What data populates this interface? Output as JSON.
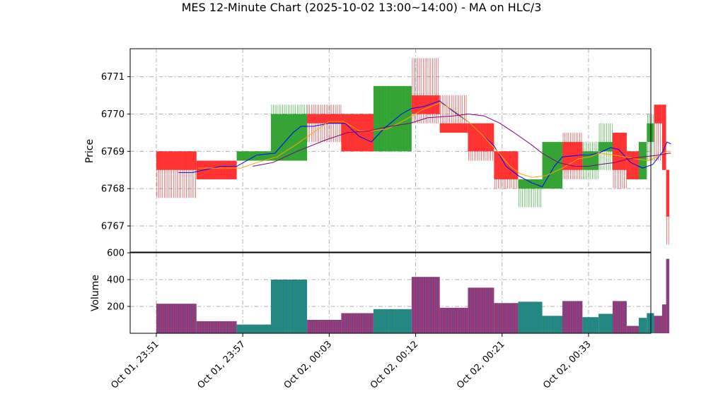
{
  "chart_data": {
    "type": "ohlc-volume",
    "title": "MES 12-Minute Chart (2025-10-02 13:00~14:00) - MA on HLC/3",
    "price_panel": {
      "ylabel": "Price",
      "ylim": [
        6766.3,
        6771.75
      ],
      "yticks": [
        6767,
        6768,
        6769,
        6770,
        6771
      ],
      "grid": true
    },
    "volume_panel": {
      "ylabel": "Volume",
      "ylim": [
        0,
        600
      ],
      "yticks": [
        200,
        400,
        600
      ],
      "grid": true
    },
    "x_axis": {
      "xlim": [
        -0.65,
        12.3
      ],
      "tick_positions": [
        0,
        2.15,
        4.3,
        6.45,
        8.6,
        10.75,
        12.9
      ],
      "tick_labels": [
        "Oct 01, 23:51",
        "Oct 01, 23:57",
        "Oct 02, 00:03",
        "Oct 02, 00:12",
        "Oct 02, 00:21",
        "Oct 02, 00:33",
        ""
      ]
    },
    "candles": [
      {
        "x0": 0.0,
        "x1": 1.0,
        "open": 6769.0,
        "high": 6769.0,
        "low": 6767.75,
        "close": 6768.5,
        "volume": 220
      },
      {
        "x0": 1.0,
        "x1": 2.0,
        "open": 6768.75,
        "high": 6768.75,
        "low": 6768.25,
        "close": 6768.25,
        "volume": 90
      },
      {
        "x0": 2.0,
        "x1": 2.85,
        "open": 6768.75,
        "high": 6769.0,
        "low": 6768.75,
        "close": 6769.0,
        "volume": 65
      },
      {
        "x0": 2.85,
        "x1": 3.75,
        "open": 6768.75,
        "high": 6770.25,
        "low": 6768.75,
        "close": 6770.0,
        "volume": 400
      },
      {
        "x0": 3.75,
        "x1": 4.6,
        "open": 6770.0,
        "high": 6770.25,
        "low": 6769.25,
        "close": 6769.75,
        "volume": 100
      },
      {
        "x0": 4.6,
        "x1": 5.4,
        "open": 6770.0,
        "high": 6770.0,
        "low": 6769.0,
        "close": 6769.0,
        "volume": 150
      },
      {
        "x0": 5.4,
        "x1": 6.35,
        "open": 6769.0,
        "high": 6770.75,
        "low": 6769.0,
        "close": 6770.75,
        "volume": 180
      },
      {
        "x0": 6.35,
        "x1": 7.05,
        "open": 6770.5,
        "high": 6771.5,
        "low": 6769.75,
        "close": 6770.0,
        "volume": 420
      },
      {
        "x0": 7.05,
        "x1": 7.75,
        "open": 6769.75,
        "high": 6770.5,
        "low": 6769.5,
        "close": 6769.5,
        "volume": 190
      },
      {
        "x0": 7.75,
        "x1": 8.4,
        "open": 6769.75,
        "high": 6769.75,
        "low": 6768.75,
        "close": 6769.0,
        "volume": 340
      },
      {
        "x0": 8.4,
        "x1": 9.0,
        "open": 6769.0,
        "high": 6769.0,
        "low": 6768.0,
        "close": 6768.25,
        "volume": 225
      },
      {
        "x0": 9.0,
        "x1": 9.6,
        "open": 6768.0,
        "high": 6768.25,
        "low": 6767.5,
        "close": 6768.25,
        "volume": 235
      },
      {
        "x0": 9.6,
        "x1": 10.1,
        "open": 6768.0,
        "high": 6769.25,
        "low": 6768.0,
        "close": 6769.25,
        "volume": 130
      },
      {
        "x0": 10.1,
        "x1": 10.6,
        "open": 6769.25,
        "high": 6769.5,
        "low": 6768.25,
        "close": 6768.5,
        "volume": 240
      },
      {
        "x0": 10.6,
        "x1": 11.0,
        "open": 6768.5,
        "high": 6769.25,
        "low": 6768.25,
        "close": 6769.0,
        "volume": 120
      },
      {
        "x0": 11.0,
        "x1": 11.35,
        "open": 6769.0,
        "high": 6769.75,
        "low": 6768.5,
        "close": 6769.25,
        "volume": 145
      },
      {
        "x0": 11.35,
        "x1": 11.7,
        "open": 6769.5,
        "high": 6769.5,
        "low": 6768.0,
        "close": 6768.5,
        "volume": 240
      },
      {
        "x0": 11.7,
        "x1": 12.0,
        "open": 6769.0,
        "high": 6769.0,
        "low": 6768.25,
        "close": 6768.25,
        "volume": 55
      },
      {
        "x0": 12.0,
        "x1": 12.2,
        "open": 6768.25,
        "high": 6769.25,
        "low": 6768.25,
        "close": 6769.25,
        "volume": 115
      },
      {
        "x0": 12.2,
        "x1": 12.38,
        "open": 6769.25,
        "high": 6770.0,
        "low": 6768.75,
        "close": 6769.75,
        "volume": 150
      },
      {
        "x0": 12.38,
        "x1": 12.58,
        "open": 6770.25,
        "high": 6770.25,
        "low": 6768.75,
        "close": 6769.75,
        "volume": 130
      },
      {
        "x0": 12.58,
        "x1": 12.68,
        "open": 6770.25,
        "high": 6770.25,
        "low": 6768.5,
        "close": 6768.5,
        "volume": 215
      },
      {
        "x0": 12.68,
        "x1": 12.76,
        "open": 6768.5,
        "high": 6768.5,
        "low": 6766.5,
        "close": 6767.25,
        "volume": 555
      }
    ],
    "moving_averages": [
      {
        "color": "#0000ff",
        "points": [
          [
            0.55,
            6768.43
          ],
          [
            0.9,
            6768.43
          ],
          [
            1.6,
            6768.6
          ],
          [
            2.0,
            6768.6
          ],
          [
            2.5,
            6768.9
          ],
          [
            2.95,
            6768.95
          ],
          [
            3.4,
            6769.5
          ],
          [
            3.6,
            6769.67
          ],
          [
            3.9,
            6769.67
          ],
          [
            4.3,
            6769.75
          ],
          [
            4.7,
            6769.75
          ],
          [
            5.05,
            6769.4
          ],
          [
            5.35,
            6769.25
          ],
          [
            5.65,
            6769.6
          ],
          [
            6.1,
            6770.0
          ],
          [
            6.35,
            6770.15
          ],
          [
            6.65,
            6770.2
          ],
          [
            7.05,
            6770.35
          ],
          [
            7.35,
            6770.1
          ],
          [
            7.75,
            6769.8
          ],
          [
            8.05,
            6769.5
          ],
          [
            8.4,
            6769.15
          ],
          [
            8.7,
            6768.6
          ],
          [
            9.0,
            6768.35
          ],
          [
            9.35,
            6768.15
          ],
          [
            9.6,
            6768.05
          ],
          [
            9.9,
            6768.6
          ],
          [
            10.1,
            6768.85
          ],
          [
            10.55,
            6768.9
          ],
          [
            10.75,
            6768.9
          ],
          [
            11.0,
            6768.95
          ],
          [
            11.3,
            6769.1
          ],
          [
            11.5,
            6769.05
          ],
          [
            11.8,
            6768.7
          ],
          [
            12.1,
            6768.55
          ],
          [
            12.35,
            6768.65
          ],
          [
            12.6,
            6769.0
          ],
          [
            12.7,
            6769.25
          ],
          [
            12.8,
            6769.2
          ]
        ]
      },
      {
        "color": "#ffa500",
        "points": [
          [
            1.05,
            6768.55
          ],
          [
            1.6,
            6768.55
          ],
          [
            2.1,
            6768.55
          ],
          [
            2.5,
            6768.7
          ],
          [
            3.0,
            6768.85
          ],
          [
            3.5,
            6769.2
          ],
          [
            3.9,
            6769.5
          ],
          [
            4.3,
            6769.8
          ],
          [
            4.65,
            6769.8
          ],
          [
            5.05,
            6769.55
          ],
          [
            5.35,
            6769.55
          ],
          [
            5.75,
            6769.6
          ],
          [
            6.2,
            6769.85
          ],
          [
            6.6,
            6770.1
          ],
          [
            7.05,
            6770.3
          ],
          [
            7.4,
            6770.1
          ],
          [
            7.75,
            6769.8
          ],
          [
            8.1,
            6769.45
          ],
          [
            8.4,
            6769.1
          ],
          [
            8.8,
            6768.6
          ],
          [
            9.05,
            6768.4
          ],
          [
            9.35,
            6768.3
          ],
          [
            9.7,
            6768.35
          ],
          [
            10.1,
            6768.55
          ],
          [
            10.5,
            6768.8
          ],
          [
            10.8,
            6768.85
          ],
          [
            11.0,
            6768.95
          ],
          [
            11.4,
            6768.9
          ],
          [
            11.9,
            6768.8
          ],
          [
            12.25,
            6768.75
          ],
          [
            12.55,
            6768.9
          ],
          [
            12.7,
            6769.0
          ],
          [
            12.8,
            6769.0
          ]
        ]
      },
      {
        "color": "#800080",
        "points": [
          [
            2.4,
            6768.6
          ],
          [
            2.9,
            6768.7
          ],
          [
            3.5,
            6769.0
          ],
          [
            4.2,
            6769.3
          ],
          [
            4.75,
            6769.5
          ],
          [
            5.3,
            6769.55
          ],
          [
            5.7,
            6769.65
          ],
          [
            6.3,
            6769.75
          ],
          [
            6.75,
            6769.9
          ],
          [
            7.4,
            6769.95
          ],
          [
            7.75,
            6770.0
          ],
          [
            8.15,
            6769.95
          ],
          [
            8.55,
            6769.75
          ],
          [
            8.9,
            6769.5
          ],
          [
            9.3,
            6769.2
          ],
          [
            9.6,
            6768.95
          ],
          [
            10.0,
            6768.7
          ],
          [
            10.4,
            6768.6
          ],
          [
            10.75,
            6768.6
          ],
          [
            11.05,
            6768.65
          ],
          [
            11.4,
            6768.7
          ],
          [
            11.75,
            6768.8
          ],
          [
            12.1,
            6768.85
          ],
          [
            12.5,
            6768.9
          ],
          [
            12.75,
            6768.95
          ],
          [
            12.8,
            6768.95
          ]
        ]
      }
    ]
  }
}
